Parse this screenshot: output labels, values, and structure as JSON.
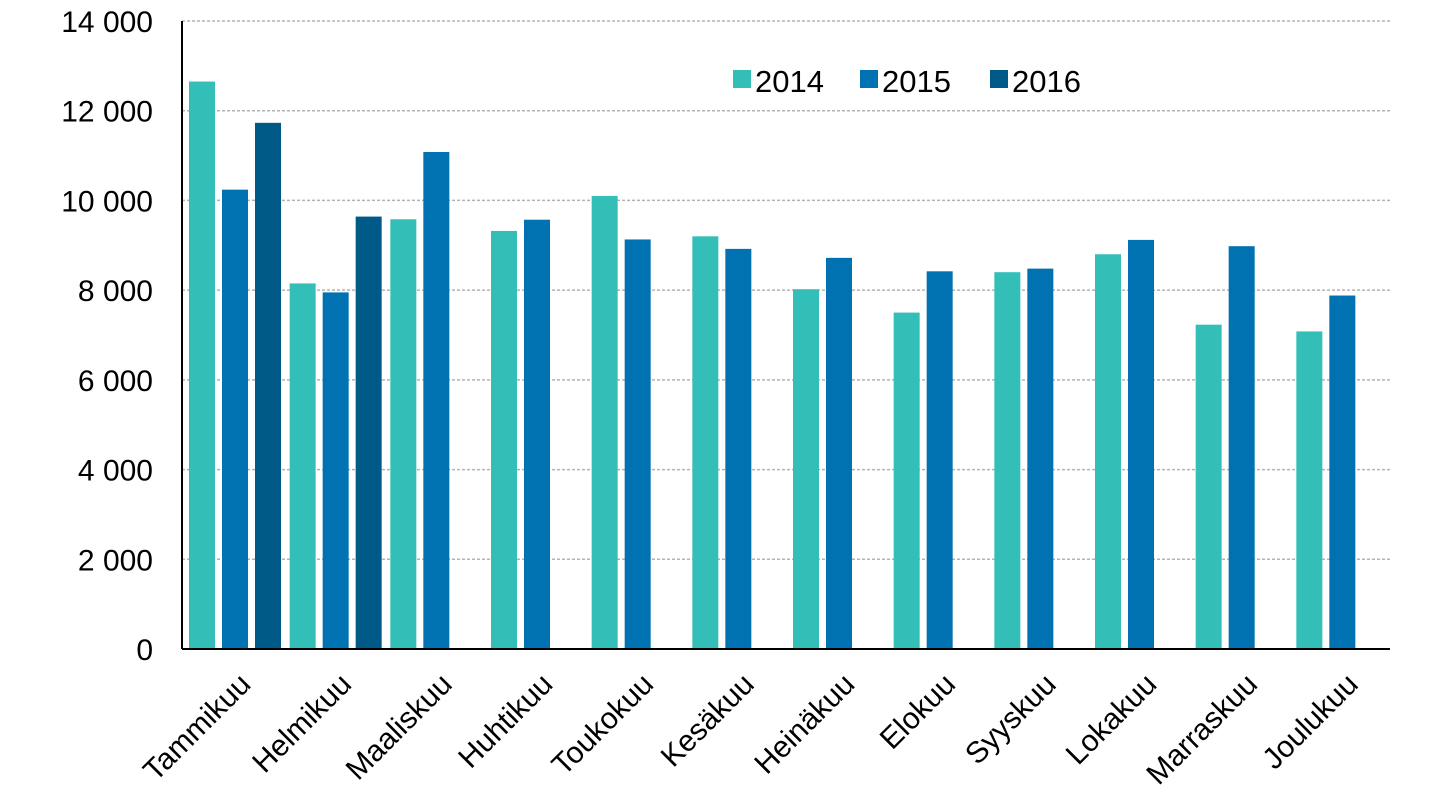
{
  "chart_data": {
    "type": "bar",
    "categories": [
      "Tammikuu",
      "Helmikuu",
      "Maaliskuu",
      "Huhtikuu",
      "Toukokuu",
      "Kesäkuu",
      "Heinäkuu",
      "Elokuu",
      "Syyskuu",
      "Lokakuu",
      "Marraskuu",
      "Joulukuu"
    ],
    "series": [
      {
        "name": "2014",
        "color": "#33bfb7",
        "values": [
          12650,
          8150,
          9580,
          9320,
          10100,
          9200,
          8020,
          7500,
          8400,
          8800,
          7230,
          7080
        ]
      },
      {
        "name": "2015",
        "color": "#0072b2",
        "values": [
          10240,
          7950,
          11080,
          9570,
          9130,
          8920,
          8720,
          8420,
          8480,
          9120,
          8980,
          7880
        ]
      },
      {
        "name": "2016",
        "color": "#005a87",
        "values": [
          11730,
          9640,
          null,
          null,
          null,
          null,
          null,
          null,
          null,
          null,
          null,
          null
        ]
      }
    ],
    "ylim": [
      0,
      14000
    ],
    "yticks": [
      0,
      2000,
      4000,
      6000,
      8000,
      10000,
      12000,
      14000
    ],
    "ytick_labels": [
      "0",
      "2 000",
      "4 000",
      "6 000",
      "8 000",
      "10 000",
      "12 000",
      "14 000"
    ],
    "grid": true,
    "legend_position": "top-center",
    "title": "",
    "xlabel": "",
    "ylabel": ""
  }
}
